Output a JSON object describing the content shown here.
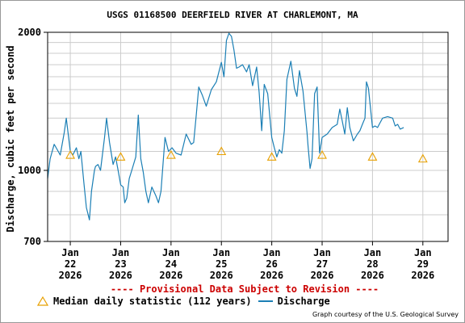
{
  "page": {
    "title": "USGS 01168500 DEERFIELD RIVER AT CHARLEMONT, MA",
    "provisional_notice": "---- Provisional Data Subject to Revision ----",
    "credit": "Graph courtesy of the U.S. Geological Survey"
  },
  "legend": {
    "median_label": "Median daily statistic (112 years)",
    "discharge_label": "Discharge"
  },
  "colors": {
    "discharge": "#1b7fb5",
    "median": "#e8a000",
    "provisional": "#cc0000",
    "grid": "#cccccc"
  },
  "chart_data": {
    "type": "line",
    "title": "USGS 01168500 DEERFIELD RIVER AT CHARLEMONT, MA",
    "ylabel": "Discharge, cubic feet per second",
    "xlabel": "",
    "y_scale": "log",
    "ylim": [
      700,
      2000
    ],
    "xlim": [
      21.55,
      29.5
    ],
    "grid": true,
    "legend_position": "bottom",
    "y_ticks": [
      {
        "value": 700,
        "label": "700"
      },
      {
        "value": 1000,
        "label": "1000"
      },
      {
        "value": 2000,
        "label": "2000"
      }
    ],
    "y_grid": [
      700,
      800,
      900,
      1000,
      1100,
      1200,
      1300,
      1400,
      1500,
      1600,
      1700,
      1800,
      1900,
      2000
    ],
    "x_ticks": [
      {
        "value": 22,
        "month": "Jan",
        "day": "22",
        "year": "2026"
      },
      {
        "value": 23,
        "month": "Jan",
        "day": "23",
        "year": "2026"
      },
      {
        "value": 24,
        "month": "Jan",
        "day": "24",
        "year": "2026"
      },
      {
        "value": 25,
        "month": "Jan",
        "day": "25",
        "year": "2026"
      },
      {
        "value": 26,
        "month": "Jan",
        "day": "26",
        "year": "2026"
      },
      {
        "value": 27,
        "month": "Jan",
        "day": "27",
        "year": "2026"
      },
      {
        "value": 28,
        "month": "Jan",
        "day": "28",
        "year": "2026"
      },
      {
        "value": 29,
        "month": "Jan",
        "day": "29",
        "year": "2026"
      }
    ],
    "series": [
      {
        "name": "Discharge",
        "x": [
          21.55,
          21.6,
          21.68,
          21.72,
          21.8,
          21.88,
          21.92,
          22.0,
          22.05,
          22.12,
          22.17,
          22.21,
          22.27,
          22.32,
          22.38,
          22.42,
          22.48,
          22.5,
          22.55,
          22.6,
          22.68,
          22.72,
          22.78,
          22.82,
          22.85,
          22.9,
          22.95,
          23.0,
          23.05,
          23.08,
          23.12,
          23.17,
          23.22,
          23.3,
          23.35,
          23.4,
          23.45,
          23.5,
          23.55,
          23.62,
          23.7,
          23.75,
          23.8,
          23.88,
          23.95,
          24.02,
          24.1,
          24.2,
          24.3,
          24.4,
          24.45,
          24.5,
          24.55,
          24.62,
          24.7,
          24.8,
          24.9,
          25.0,
          25.05,
          25.1,
          25.15,
          25.2,
          25.25,
          25.3,
          25.35,
          25.42,
          25.5,
          25.55,
          25.62,
          25.7,
          25.75,
          25.8,
          25.85,
          25.92,
          26.0,
          26.05,
          26.1,
          26.15,
          26.2,
          26.25,
          26.3,
          26.38,
          26.45,
          26.5,
          26.55,
          26.62,
          26.7,
          26.72,
          26.76,
          26.8,
          26.85,
          26.9,
          26.95,
          27.0,
          27.05,
          27.1,
          27.2,
          27.3,
          27.35,
          27.4,
          27.45,
          27.5,
          27.55,
          27.62,
          27.7,
          27.75,
          27.8,
          27.85,
          27.88,
          27.92,
          28.0,
          28.05,
          28.1,
          28.15,
          28.2,
          28.3,
          28.4,
          28.45,
          28.5,
          28.55,
          28.62
        ],
        "values": [
          960,
          1060,
          1140,
          1120,
          1080,
          1210,
          1300,
          1100,
          1080,
          1120,
          1060,
          1100,
          940,
          830,
          780,
          900,
          1000,
          1020,
          1030,
          1000,
          1180,
          1300,
          1150,
          1080,
          1030,
          1070,
          1000,
          930,
          920,
          850,
          870,
          960,
          1000,
          1070,
          1320,
          1060,
          990,
          900,
          850,
          920,
          880,
          850,
          900,
          1180,
          1100,
          1120,
          1090,
          1080,
          1200,
          1140,
          1150,
          1320,
          1520,
          1460,
          1380,
          1500,
          1560,
          1720,
          1600,
          1920,
          1990,
          1960,
          1830,
          1670,
          1680,
          1700,
          1640,
          1700,
          1530,
          1680,
          1480,
          1220,
          1540,
          1470,
          1180,
          1120,
          1070,
          1110,
          1090,
          1220,
          1580,
          1730,
          1510,
          1450,
          1650,
          1490,
          1210,
          1130,
          1010,
          1060,
          1470,
          1520,
          1090,
          1180,
          1190,
          1200,
          1240,
          1260,
          1360,
          1280,
          1200,
          1370,
          1240,
          1160,
          1200,
          1220,
          1260,
          1300,
          1560,
          1510,
          1240,
          1250,
          1240,
          1270,
          1300,
          1310,
          1300,
          1250,
          1260,
          1230,
          1240
        ]
      },
      {
        "name": "Median daily statistic (112 years)",
        "x": [
          22.0,
          23.0,
          24.0,
          25.0,
          26.0,
          27.0,
          28.0,
          29.0
        ],
        "values": [
          1080,
          1070,
          1080,
          1100,
          1070,
          1080,
          1070,
          1060
        ]
      }
    ]
  }
}
